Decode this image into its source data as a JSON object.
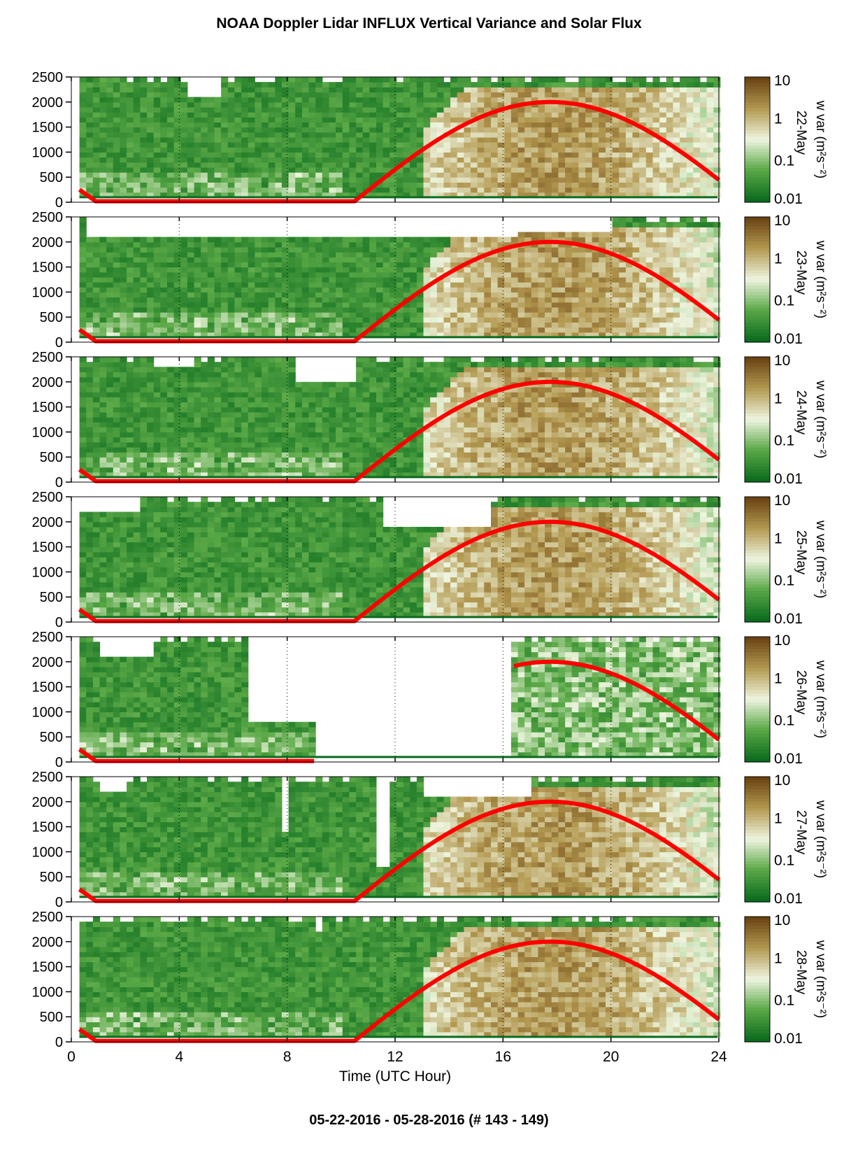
{
  "title": "NOAA Doppler Lidar INFLUX Vertical Variance and Solar Flux",
  "footer": "05-22-2016 - 05-28-2016   (# 143 - 149)",
  "colors": {
    "low": "#0b6b1e",
    "mid_low": "#5aa846",
    "mid": "#eef5df",
    "mid_high": "#b49a52",
    "high": "#6b4312",
    "solar_flux": "#ff0000",
    "blank": "#ffffff"
  },
  "chart_data": {
    "type": "heatmap",
    "xlabel": "Time (UTC Hour)",
    "xlim": [
      0,
      24
    ],
    "x_ticks": [
      "0",
      "4",
      "8",
      "12",
      "16",
      "20",
      "24"
    ],
    "ylim": [
      0,
      2500
    ],
    "y_ticks": [
      "0",
      "500",
      "1000",
      "1500",
      "2000",
      "2500"
    ],
    "grid": "dotted vertical lines at 4, 8, 12, 16, 20",
    "colorbar": {
      "label": "w var (m²s⁻²)",
      "scale": "log",
      "range": [
        0.01,
        10
      ],
      "ticks": [
        "10",
        "1",
        "0.1",
        "0.01"
      ]
    },
    "overlay": {
      "name": "solar flux",
      "color": "#ff0000"
    },
    "panels": [
      {
        "date": "22-May",
        "top_gaps": [
          [
            4.3,
            5.5,
            2100
          ],
          [
            7.5,
            9.8,
            2460
          ],
          [
            9.2,
            9.7,
            2340
          ]
        ],
        "missing": [],
        "sun_start": 0.3,
        "sun_end": 24
      },
      {
        "date": "23-May",
        "top_gaps": [
          [
            0.5,
            16.5,
            2050
          ],
          [
            14.0,
            20.0,
            2150
          ]
        ],
        "missing": [],
        "sun_start": 0.3,
        "sun_end": 24
      },
      {
        "date": "24-May",
        "top_gaps": [
          [
            3.0,
            4.5,
            2250
          ],
          [
            8.3,
            10.5,
            1950
          ]
        ],
        "missing": [],
        "sun_start": 0.3,
        "sun_end": 24
      },
      {
        "date": "25-May",
        "top_gaps": [
          [
            0.2,
            2.5,
            2200
          ],
          [
            11.5,
            15.5,
            1900
          ]
        ],
        "missing": [],
        "sun_start": 0.3,
        "sun_end": 24
      },
      {
        "date": "26-May",
        "top_gaps": [
          [
            6.5,
            9.0,
            800
          ],
          [
            1.0,
            3.0,
            2100
          ]
        ],
        "missing": [
          [
            9.0,
            16.3
          ]
        ],
        "sun_start": 0.3,
        "sun_end": 24
      },
      {
        "date": "27-May",
        "top_gaps": [
          [
            1.0,
            2.0,
            2150
          ],
          [
            7.7,
            8.0,
            1400
          ],
          [
            11.3,
            11.6,
            700
          ],
          [
            13.0,
            17.0,
            2050
          ]
        ],
        "missing": [],
        "sun_start": 0.3,
        "sun_end": 24
      },
      {
        "date": "28-May",
        "top_gaps": [
          [
            9.0,
            9.3,
            2150
          ]
        ],
        "missing": [],
        "sun_start": 0.3,
        "sun_end": 24
      }
    ]
  }
}
